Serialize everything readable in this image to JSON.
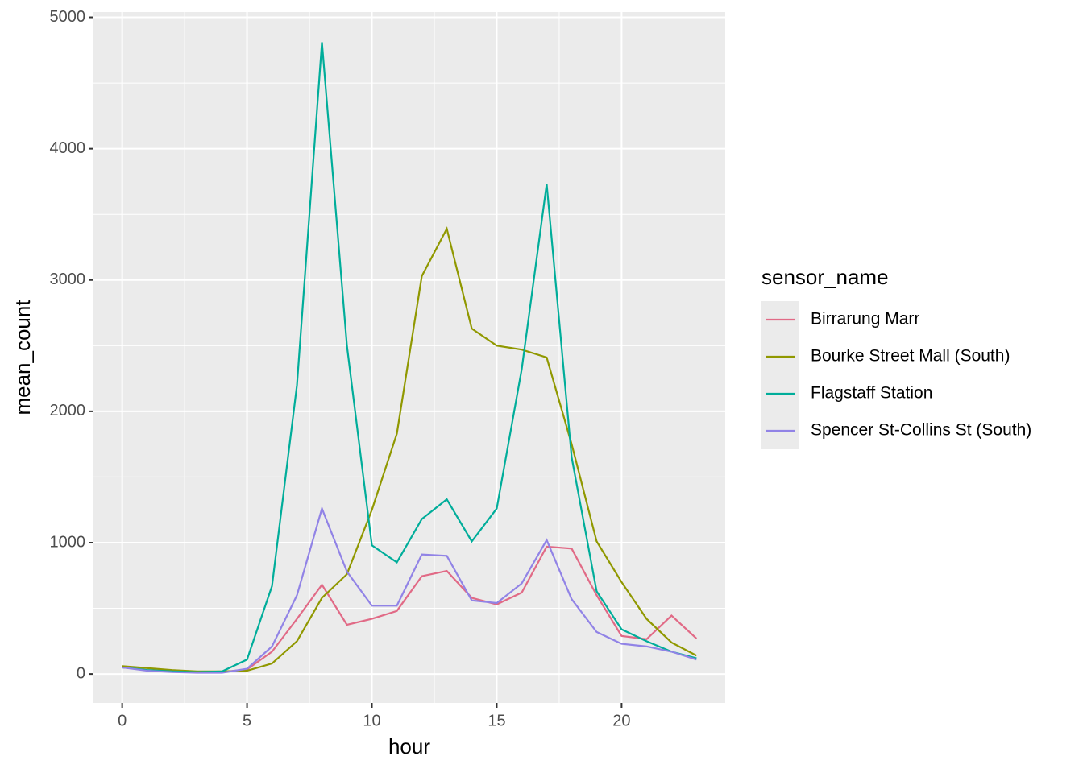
{
  "chart_data": {
    "type": "line",
    "x_label": "hour",
    "y_label": "mean_count",
    "legend_title": "sensor_name",
    "x": [
      0,
      1,
      2,
      3,
      4,
      5,
      6,
      7,
      8,
      9,
      10,
      11,
      12,
      13,
      14,
      15,
      16,
      17,
      18,
      19,
      20,
      21,
      22,
      23
    ],
    "series": [
      {
        "name": "Birrarung Marr",
        "color": "#E16A86",
        "values": [
          50,
          30,
          20,
          15,
          15,
          35,
          170,
          420,
          680,
          375,
          420,
          480,
          745,
          785,
          580,
          530,
          620,
          970,
          955,
          600,
          290,
          265,
          445,
          270
        ]
      },
      {
        "name": "Bourke Street Mall (South)",
        "color": "#909800",
        "values": [
          60,
          45,
          30,
          20,
          20,
          25,
          80,
          250,
          580,
          760,
          1250,
          1830,
          3030,
          3390,
          2630,
          2500,
          2470,
          2410,
          1750,
          1010,
          700,
          420,
          240,
          140
        ]
      },
      {
        "name": "Flagstaff Station",
        "color": "#00AD9A",
        "values": [
          50,
          30,
          20,
          15,
          20,
          110,
          670,
          2200,
          4810,
          2500,
          980,
          850,
          1180,
          1330,
          1010,
          1260,
          2320,
          3730,
          1650,
          630,
          340,
          250,
          170,
          120
        ]
      },
      {
        "name": "Spencer St-Collins St (South)",
        "color": "#9183E6",
        "values": [
          50,
          25,
          15,
          10,
          10,
          40,
          210,
          600,
          1260,
          780,
          520,
          520,
          910,
          900,
          560,
          540,
          690,
          1020,
          570,
          320,
          230,
          210,
          170,
          110
        ]
      }
    ],
    "xlim": [
      -1.15,
      24.15
    ],
    "xticks": [
      0,
      5,
      10,
      15,
      20
    ],
    "ylim": [
      -220,
      5040
    ],
    "yticks": [
      0,
      1000,
      2000,
      3000,
      4000,
      5000
    ],
    "grid": true,
    "legend_position": "right"
  }
}
